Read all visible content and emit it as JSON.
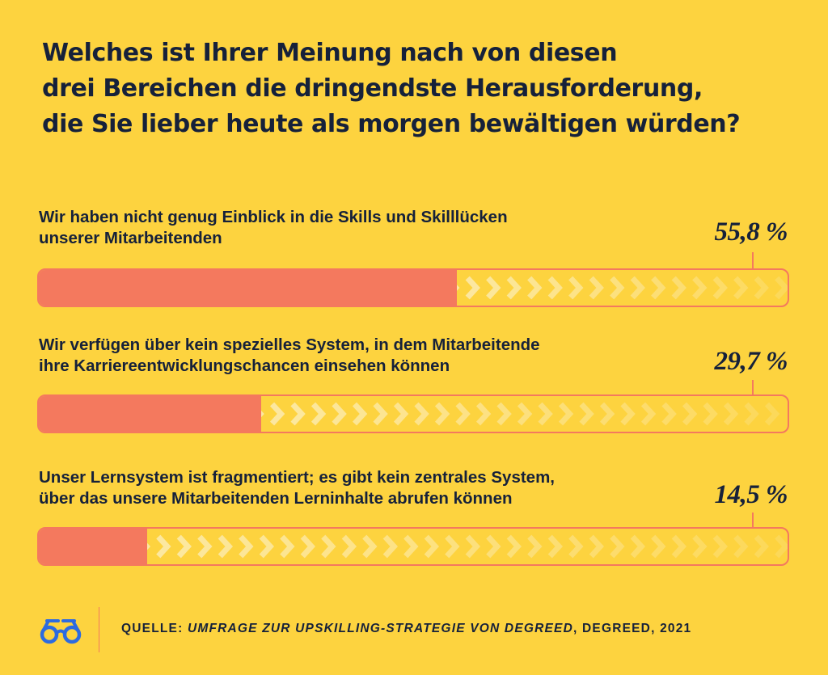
{
  "title_lines": [
    "Welches ist Ihrer Meinung nach von diesen",
    "drei Bereichen die dringendste Herausforderung,",
    "die Sie lieber heute als morgen bewältigen würden?"
  ],
  "chart_data": {
    "type": "bar",
    "orientation": "horizontal",
    "title": "Welches ist Ihrer Meinung nach von diesen drei Bereichen die dringendste Herausforderung, die Sie lieber heute als morgen bewältigen würden?",
    "categories": [
      "Wir haben nicht genug Einblick in die Skills und Skilllücken unserer Mitarbeitenden",
      "Wir verfügen über kein spezielles System, in dem Mitarbeitende ihre Karriereentwicklungschancen einsehen können",
      "Unser Lernsystem ist fragmentiert; es gibt kein zentrales System, über das unsere Mitarbeitenden Lerninhalte abrufen können"
    ],
    "values": [
      55.8,
      29.7,
      14.5
    ],
    "value_labels": [
      "55,8 %",
      "29,7 %",
      "14,5 %"
    ],
    "unit": "%",
    "xlim": [
      0,
      100
    ],
    "grid": false,
    "legend": "none"
  },
  "items": [
    {
      "label_lines": [
        "Wir haben nicht genug Einblick in die Skills und Skilllücken",
        "unserer Mitarbeitenden"
      ],
      "value_label": "55,8 %"
    },
    {
      "label_lines": [
        "Wir verfügen über kein spezielles System, in dem Mitarbeitende",
        "ihre Karriereentwicklungschancen einsehen können"
      ],
      "value_label": "29,7 %"
    },
    {
      "label_lines": [
        "Unser Lernsystem ist fragmentiert; es gibt kein zentrales System,",
        "über das unsere Mitarbeitenden Lerninhalte abrufen können"
      ],
      "value_label": "14,5 %"
    }
  ],
  "source": {
    "prefix": "QUELLE: ",
    "title": "UMFRAGE ZUR UPSKILLING-STRATEGIE VON DEGREED",
    "suffix": ", DEGREED, 2021"
  },
  "logo_icon": "glasses-icon",
  "colors": {
    "background": "#FDD33F",
    "bar": "#F4795E",
    "chevron": "#FCE8A2",
    "text": "#16213A",
    "logo": "#2D6BE0"
  }
}
